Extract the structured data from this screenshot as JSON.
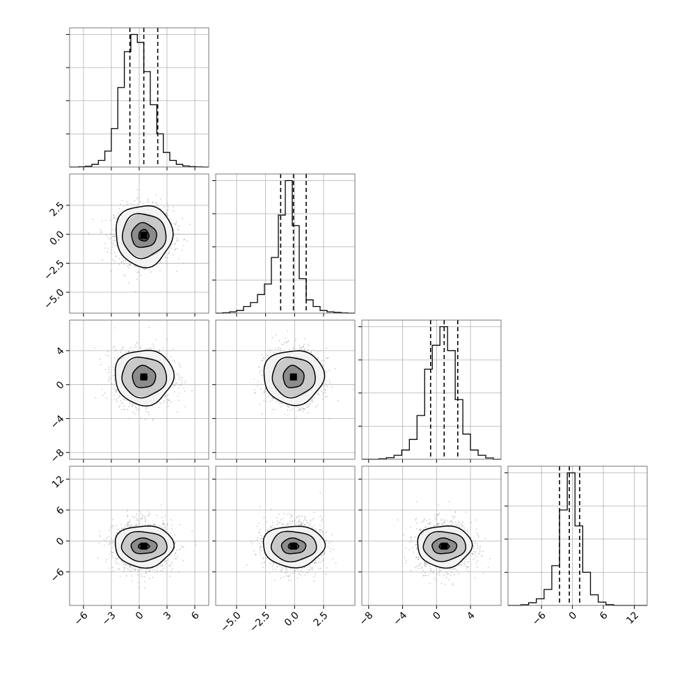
{
  "chart_data": {
    "type": "corner",
    "grid": true,
    "parameters": [
      {
        "range": [
          -7.5,
          7.5
        ],
        "xticks": [
          -6,
          -3,
          0,
          3,
          6
        ],
        "xtick_labels": [
          "−6",
          "−3",
          "0",
          "3",
          "6"
        ],
        "hist_bins": [
          -6.5,
          -5.8,
          -5.1,
          -4.4,
          -3.7,
          -3.0,
          -2.3,
          -1.6,
          -0.9,
          -0.2,
          0.5,
          1.2,
          1.9,
          2.6,
          3.3,
          4.0,
          4.7,
          5.4,
          6.1,
          6.8
        ],
        "hist_heights": [
          0.002,
          0.006,
          0.02,
          0.05,
          0.12,
          0.29,
          0.6,
          0.87,
          1.0,
          0.94,
          0.72,
          0.47,
          0.25,
          0.11,
          0.05,
          0.02,
          0.008,
          0.003,
          0.001
        ],
        "quantiles": [
          -1.0,
          0.5,
          2.0
        ]
      },
      {
        "range": [
          -6.8,
          5.2
        ],
        "xticks": [
          -5.0,
          -2.5,
          0.0,
          2.5
        ],
        "xtick_labels": [
          "−5.0",
          "−2.5",
          "0.0",
          "2.5"
        ],
        "yticks": [
          -5.0,
          -2.5,
          0.0,
          2.5
        ],
        "ytick_labels": [
          "−5.0",
          "−2.5",
          "0.0",
          "2.5"
        ],
        "hist_bins": [
          -6.2,
          -5.6,
          -5.0,
          -4.4,
          -3.8,
          -3.2,
          -2.6,
          -2.0,
          -1.4,
          -0.8,
          -0.2,
          0.4,
          1.0,
          1.6,
          2.2,
          2.8,
          3.4,
          4.0,
          4.6
        ],
        "hist_heights": [
          0.003,
          0.01,
          0.02,
          0.05,
          0.08,
          0.14,
          0.22,
          0.42,
          0.74,
          1.0,
          0.66,
          0.26,
          0.1,
          0.05,
          0.02,
          0.01,
          0.006,
          0.002
        ],
        "quantiles": [
          -1.2,
          -0.1,
          1.0
        ]
      },
      {
        "range": [
          -8.8,
          7.6
        ],
        "xticks": [
          -8,
          -4,
          0,
          4
        ],
        "xtick_labels": [
          "−8",
          "−4",
          "0",
          "4"
        ],
        "yticks": [
          -8,
          -4,
          0,
          4
        ],
        "ytick_labels": [
          "−8",
          "−4",
          "0",
          "4"
        ],
        "hist_bins": [
          -6.8,
          -5.9,
          -5.0,
          -4.1,
          -3.2,
          -2.3,
          -1.4,
          -0.5,
          0.4,
          1.3,
          2.2,
          3.1,
          4.0,
          4.9,
          5.8,
          6.7
        ],
        "hist_heights": [
          0.004,
          0.012,
          0.03,
          0.07,
          0.15,
          0.33,
          0.68,
          0.86,
          1.0,
          0.82,
          0.45,
          0.19,
          0.07,
          0.03,
          0.01
        ],
        "quantiles": [
          -0.7,
          0.9,
          2.5
        ]
      },
      {
        "range": [
          -12.5,
          14.5
        ],
        "xticks": [
          -6,
          0,
          6,
          12
        ],
        "xtick_labels": [
          "−6",
          "0",
          "6",
          "12"
        ],
        "yticks": [
          -6,
          0,
          6,
          12
        ],
        "ytick_labels": [
          "−6",
          "0",
          "6",
          "12"
        ],
        "hist_bins": [
          -10.0,
          -8.5,
          -7.0,
          -5.5,
          -4.0,
          -2.5,
          -1.0,
          0.5,
          2.0,
          3.5,
          5.0,
          6.5,
          8.0
        ],
        "hist_heights": [
          0.005,
          0.02,
          0.05,
          0.12,
          0.3,
          0.72,
          1.0,
          0.6,
          0.25,
          0.08,
          0.025,
          0.006
        ],
        "quantiles": [
          -2.5,
          -0.6,
          1.4
        ]
      }
    ],
    "pairs": [
      {
        "x": 0,
        "y": 1,
        "mean": [
          0.5,
          -0.1
        ],
        "std": [
          1.5,
          1.15
        ],
        "contours": [
          [
            0.55,
            0.5
          ],
          [
            1.35,
            1.05
          ],
          [
            2.35,
            1.9
          ],
          [
            3.05,
            2.65
          ]
        ]
      },
      {
        "x": 0,
        "y": 2,
        "mean": [
          0.5,
          0.9
        ],
        "std": [
          1.5,
          1.55
        ],
        "contours": [
          [
            0.35,
            0.35
          ],
          [
            1.25,
            1.3
          ],
          [
            2.4,
            2.35
          ],
          [
            3.15,
            3.25
          ]
        ]
      },
      {
        "x": 1,
        "y": 2,
        "mean": [
          -0.1,
          0.9
        ],
        "std": [
          1.15,
          1.55
        ],
        "contours": [
          [
            0.25,
            0.35
          ],
          [
            0.9,
            1.3
          ],
          [
            1.85,
            2.35
          ],
          [
            2.6,
            3.2
          ]
        ]
      },
      {
        "x": 0,
        "y": 3,
        "mean": [
          0.5,
          -1.0
        ],
        "std": [
          1.5,
          2.3
        ],
        "contours": [
          [
            0.6,
            0.55
          ],
          [
            1.4,
            1.5
          ],
          [
            2.45,
            2.85
          ],
          [
            3.15,
            4.05
          ]
        ]
      },
      {
        "x": 1,
        "y": 3,
        "mean": [
          -0.1,
          -1.0
        ],
        "std": [
          1.15,
          2.3
        ],
        "contours": [
          [
            0.45,
            0.6
          ],
          [
            1.05,
            1.5
          ],
          [
            1.95,
            2.9
          ],
          [
            2.65,
            4.0
          ]
        ]
      },
      {
        "x": 2,
        "y": 3,
        "mean": [
          0.9,
          -1.0
        ],
        "std": [
          1.55,
          2.3
        ],
        "contours": [
          [
            0.6,
            0.55
          ],
          [
            1.45,
            1.5
          ],
          [
            2.5,
            2.85
          ],
          [
            3.2,
            4.05
          ]
        ]
      }
    ]
  }
}
